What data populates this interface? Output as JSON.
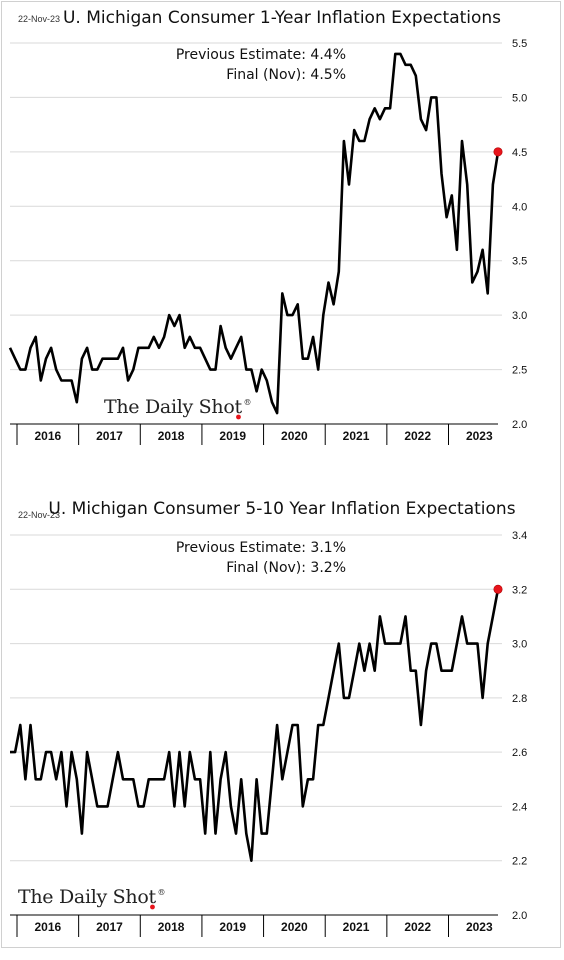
{
  "charts": [
    {
      "date": "22-Nov-23",
      "title": "U. Michigan Consumer 1-Year Inflation Expectations",
      "annotation_lines": [
        "Previous Estimate:  4.4%",
        "Final (Nov):  4.5%"
      ],
      "y_ticks": [
        "5.5",
        "5.0",
        "4.5",
        "4.0",
        "3.5",
        "3.0",
        "2.5",
        "2.0"
      ],
      "x_labels": [
        "2016",
        "2017",
        "2018",
        "2019",
        "2020",
        "2021",
        "2022",
        "2023"
      ],
      "brand": "The Daily Shot",
      "brand_mark": "®"
    },
    {
      "date": "22-Nov-23",
      "title": "U. Michigan Consumer 5-10 Year Inflation Expectations",
      "annotation_lines": [
        "Previous Estimate:  3.1%",
        "Final (Nov):  3.2%"
      ],
      "y_ticks": [
        "3.4",
        "3.2",
        "3.0",
        "2.8",
        "2.6",
        "2.4",
        "2.2",
        "2.0"
      ],
      "x_labels": [
        "2016",
        "2017",
        "2018",
        "2019",
        "2020",
        "2021",
        "2022",
        "2023"
      ],
      "brand": "The Daily Shot",
      "brand_mark": "®"
    }
  ],
  "colors": {
    "line": "#000000",
    "highlight": "#e8141b",
    "grid": "#d9d9d9"
  },
  "chart_data": [
    {
      "type": "line",
      "title": "U. Michigan Consumer 1-Year Inflation Expectations",
      "x_start": "2016-01",
      "x_end": "2023-11",
      "frequency": "monthly",
      "ylim": [
        2.0,
        5.5
      ],
      "grid": true,
      "series": [
        {
          "values": [
            2.7,
            2.6,
            2.5,
            2.5,
            2.7,
            2.8,
            2.4,
            2.6,
            2.7,
            2.5,
            2.4,
            2.4,
            2.4,
            2.2,
            2.6,
            2.7,
            2.5,
            2.5,
            2.6,
            2.6,
            2.6,
            2.6,
            2.7,
            2.4,
            2.5,
            2.7,
            2.7,
            2.7,
            2.8,
            2.7,
            2.8,
            3.0,
            2.9,
            3.0,
            2.7,
            2.8,
            2.7,
            2.7,
            2.6,
            2.5,
            2.5,
            2.9,
            2.7,
            2.6,
            2.7,
            2.8,
            2.5,
            2.5,
            2.3,
            2.5,
            2.4,
            2.2,
            2.1,
            3.2,
            3.0,
            3.0,
            3.1,
            2.6,
            2.6,
            2.8,
            2.5,
            3.0,
            3.3,
            3.1,
            3.4,
            4.6,
            4.2,
            4.7,
            4.6,
            4.6,
            4.8,
            4.9,
            4.8,
            4.9,
            4.9,
            5.4,
            5.4,
            5.3,
            5.3,
            5.2,
            4.8,
            4.7,
            5.0,
            5.0,
            4.3,
            3.9,
            4.1,
            3.6,
            4.6,
            4.2,
            3.3,
            3.4,
            3.6,
            3.2,
            4.2,
            4.5
          ]
        }
      ],
      "highlight": {
        "x": "2023-11",
        "y": 4.5
      }
    },
    {
      "type": "line",
      "title": "U. Michigan Consumer 5-10 Year Inflation Expectations",
      "x_start": "2016-01",
      "x_end": "2023-11",
      "frequency": "monthly",
      "ylim": [
        2.0,
        3.4
      ],
      "grid": true,
      "series": [
        {
          "values": [
            2.6,
            2.6,
            2.7,
            2.5,
            2.7,
            2.5,
            2.5,
            2.6,
            2.6,
            2.5,
            2.6,
            2.4,
            2.6,
            2.5,
            2.3,
            2.6,
            2.5,
            2.4,
            2.4,
            2.4,
            2.5,
            2.6,
            2.5,
            2.5,
            2.5,
            2.4,
            2.4,
            2.5,
            2.5,
            2.5,
            2.5,
            2.6,
            2.4,
            2.6,
            2.4,
            2.6,
            2.5,
            2.5,
            2.3,
            2.6,
            2.3,
            2.5,
            2.6,
            2.4,
            2.3,
            2.5,
            2.3,
            2.2,
            2.5,
            2.3,
            2.3,
            2.5,
            2.7,
            2.5,
            2.6,
            2.7,
            2.7,
            2.4,
            2.5,
            2.5,
            2.7,
            2.7,
            2.8,
            2.9,
            3.0,
            2.8,
            2.8,
            2.9,
            3.0,
            2.9,
            3.0,
            2.9,
            3.1,
            3.0,
            3.0,
            3.0,
            3.0,
            3.1,
            2.9,
            2.9,
            2.7,
            2.9,
            3.0,
            3.0,
            2.9,
            2.9,
            2.9,
            3.0,
            3.1,
            3.0,
            3.0,
            3.0,
            2.8,
            3.0,
            3.1,
            3.2
          ]
        }
      ],
      "highlight": {
        "x": "2023-11",
        "y": 3.2
      }
    }
  ]
}
